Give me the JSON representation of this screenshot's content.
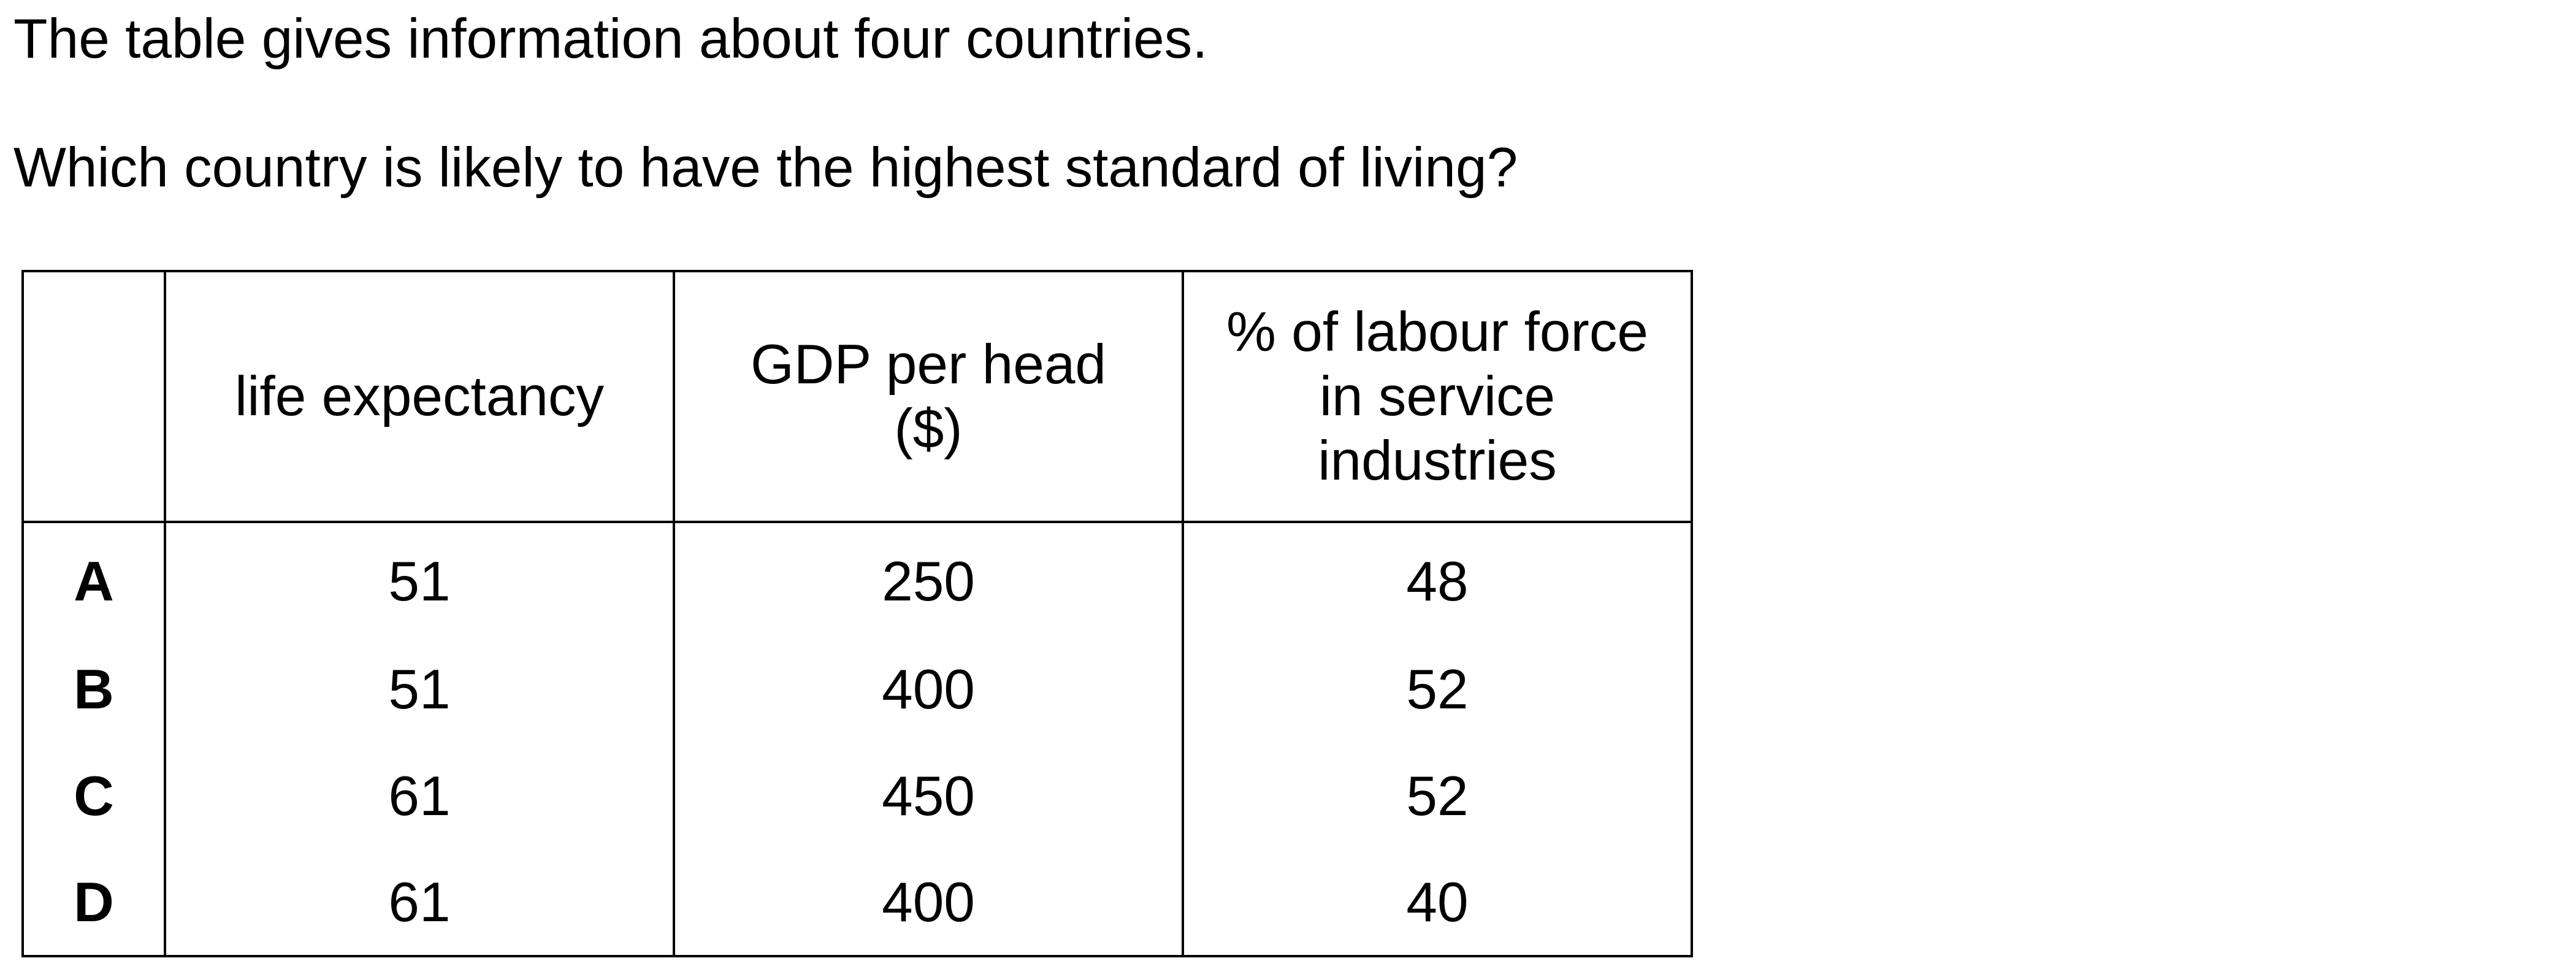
{
  "question": {
    "intro": "The table gives information about four countries.",
    "prompt": "Which country is likely to have the highest standard of living?"
  },
  "table": {
    "headers": [
      "",
      "life expectancy",
      "GDP per head\n($)",
      "% of labour force\nin service\nindustries"
    ],
    "rows": [
      {
        "label": "A",
        "life_expectancy": "51",
        "gdp_per_head": "250",
        "labour_force_services": "48"
      },
      {
        "label": "B",
        "life_expectancy": "51",
        "gdp_per_head": "400",
        "labour_force_services": "52"
      },
      {
        "label": "C",
        "life_expectancy": "61",
        "gdp_per_head": "450",
        "labour_force_services": "52"
      },
      {
        "label": "D",
        "life_expectancy": "61",
        "gdp_per_head": "400",
        "labour_force_services": "40"
      }
    ]
  }
}
